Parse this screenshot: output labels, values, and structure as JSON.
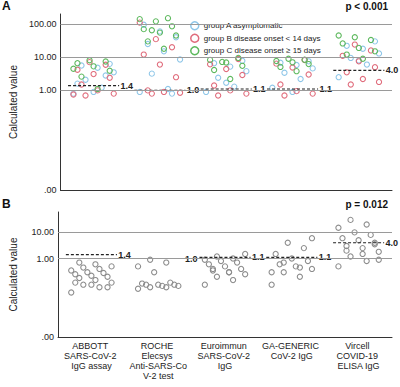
{
  "chart_data": [
    {
      "type": "scatter",
      "title": "A",
      "annotation": "p < 0.001",
      "y_label": "Calculated value",
      "categories": [
        "ABBOTT SARS-CoV-2 IgG assay",
        "ROCHE Elecsys Anti-SARS-CoV-2 test",
        "Euroimmun SARS-CoV-2 IgG",
        "GA-GENERIC CoV-2 IgG",
        "Vircell COVID-19 ELISA IgG"
      ],
      "log": "y",
      "grid": true,
      "legend": "top",
      "tick_labels": "y",
      "marker": "circle-open",
      "ylim": [
        0.001,
        200
      ],
      "yticks": [
        {
          "value": 0.001,
          "label": ".00"
        },
        {
          "value": 1,
          "label": "1.00"
        },
        {
          "value": 10,
          "label": "10.00"
        },
        {
          "value": 100,
          "label": "100.00"
        }
      ],
      "cutoffs": {
        "values": [
          1.4,
          1.0,
          1.1,
          1.1,
          4.0
        ],
        "value_labels": [
          "1.4",
          "1.0",
          "1.1",
          "1.1",
          "4.0"
        ]
      },
      "series": [
        {
          "name": "group A asymptomatic",
          "color": "#8ec6e8",
          "values": [
            [
              0.8,
              1.2,
              2.1,
              3.5,
              4.8,
              5.6,
              6.3,
              0.9,
              1.6,
              2.8
            ],
            [
              0.9,
              1.1,
              3.2,
              8.5,
              15,
              25,
              40,
              60,
              95,
              0.8
            ],
            [
              0.9,
              1.3,
              2.4,
              3.8,
              5.2,
              6.6,
              7.8,
              1.7
            ],
            [
              1.2,
              2.2,
              3.4,
              4.6,
              5.8,
              6.8,
              7.5,
              0.9
            ],
            [
              2.5,
              6,
              9.5,
              13,
              18,
              22,
              30,
              8
            ]
          ]
        },
        {
          "name": "group B disease onset < 14 days",
          "color": "#e06c7c",
          "values": [
            [
              0.7,
              0.8,
              1.0,
              1.5,
              2.4,
              3.1,
              4.2,
              5.9,
              7.1,
              0.75
            ],
            [
              0.8,
              0.85,
              0.9,
              1.0,
              2.5,
              6,
              12,
              20,
              35,
              110
            ],
            [
              0.7,
              0.8,
              1.0,
              1.4,
              2.9,
              4.4,
              6.1,
              8.8
            ],
            [
              0.7,
              0.8,
              0.95,
              1.5,
              3,
              4.9,
              6.4,
              8.2
            ],
            [
              1.5,
              1.8,
              2.2,
              3.5,
              5,
              7.5,
              11,
              16,
              24
            ]
          ]
        },
        {
          "name": "group C disease onset ≥ 15 days",
          "color": "#5cb85c",
          "values": [
            [
              1.1,
              2.6,
              3.9,
              5.3,
              6.6,
              7.4,
              8.1,
              4.5
            ],
            [
              18,
              30,
              45,
              55,
              70,
              85,
              120,
              140,
              150,
              65
            ],
            [
              2.2,
              4.1,
              5.5,
              6.9,
              8.3,
              9.5,
              7.2
            ],
            [
              3.8,
              5.1,
              6.2,
              7.0,
              7.7,
              8.4,
              9.0
            ],
            [
              9,
              12,
              15,
              19,
              26,
              33,
              40,
              45
            ]
          ]
        }
      ]
    },
    {
      "type": "scatter",
      "title": "B",
      "annotation": "p = 0.012",
      "y_label": "Calculated value",
      "categories": [
        "ABBOTT SARS-CoV-2 IgG assay",
        "ROCHE Elecsys Anti-SARS-CoV-2 test",
        "Euroimmun SARS-CoV-2 IgG",
        "GA-GENERIC CoV-2 IgG",
        "Vircell COVID-19 ELISA IgG"
      ],
      "log": "y",
      "grid": true,
      "marker": "circle-open",
      "ylim": [
        0.001,
        60
      ],
      "yticks": [
        {
          "value": 0.001,
          "label": ".00"
        },
        {
          "value": 1,
          "label": "1.00"
        },
        {
          "value": 10,
          "label": "10.00"
        }
      ],
      "cutoffs": {
        "values": [
          1.4,
          1.0,
          1.1,
          1.1,
          4.0
        ],
        "value_labels": [
          "1.4",
          "1.0",
          "1.1",
          "1.1",
          "4.0"
        ]
      },
      "series": [
        {
          "color": "#8c8c8c",
          "values": [
            [
              0.05,
              0.08,
              0.1,
              0.12,
              0.15,
              0.18,
              0.2,
              0.22,
              0.25,
              0.28,
              0.3,
              0.35,
              0.4,
              0.45,
              0.5,
              0.6,
              0.7,
              0.08,
              0.1,
              0.12
            ],
            [
              0.07,
              0.08,
              0.08,
              0.09,
              0.09,
              0.1,
              0.1,
              0.1,
              0.11,
              0.12,
              0.3,
              0.5,
              0.7,
              0.9
            ],
            [
              0.1,
              0.15,
              0.2,
              0.25,
              0.3,
              0.35,
              0.4,
              0.5,
              0.6,
              0.7,
              0.8,
              0.9,
              1.0,
              1.2,
              1.5,
              0.3,
              0.4
            ],
            [
              0.1,
              0.2,
              0.3,
              0.4,
              0.5,
              0.6,
              0.8,
              1.0,
              1.5,
              2.5,
              4,
              0.3,
              0.45,
              0.7,
              6
            ],
            [
              0.5,
              0.8,
              1.2,
              1.8,
              2.5,
              3,
              4,
              5,
              6,
              8,
              10,
              15,
              20,
              30,
              0.9,
              1.5,
              2,
              3.5
            ]
          ]
        }
      ]
    }
  ]
}
